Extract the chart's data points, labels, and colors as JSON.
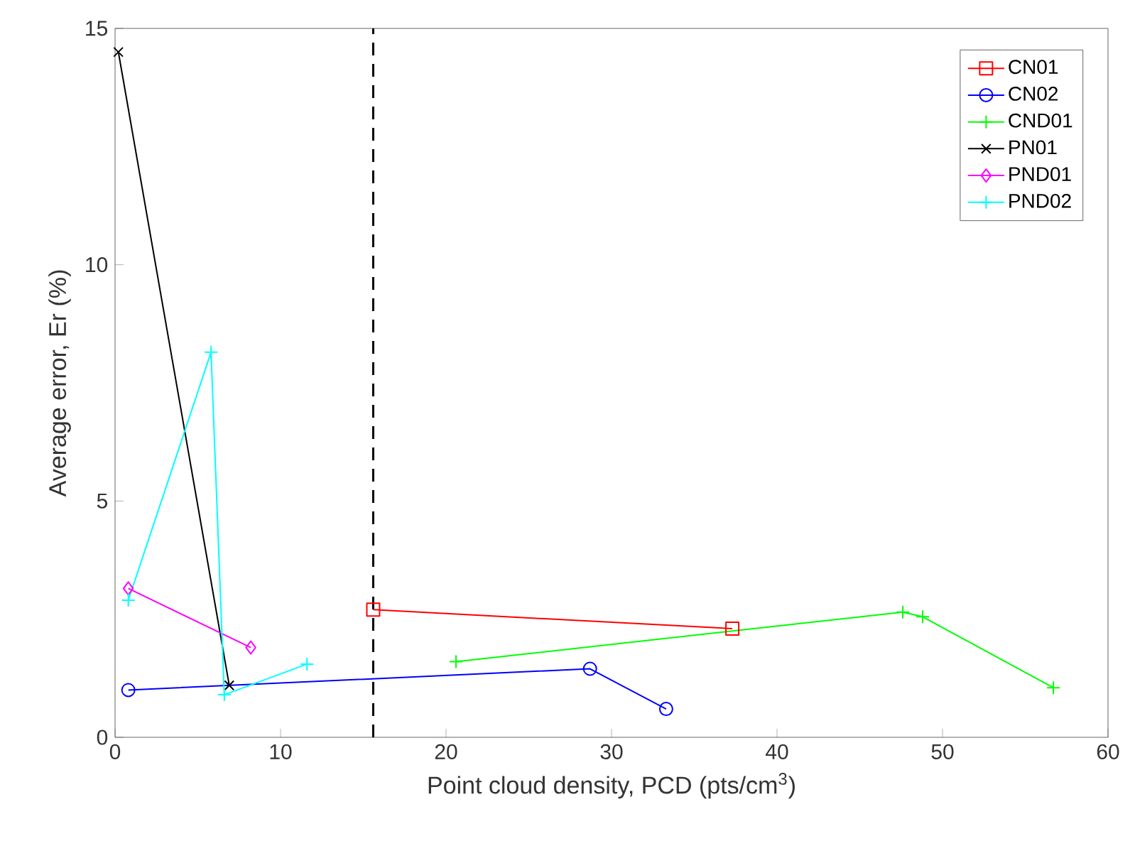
{
  "chart_data": {
    "type": "line",
    "xlabel": "Point cloud density, PCD (pts/cm$^{3}$)",
    "ylabel": "Average error, Er (%)",
    "xlim": [
      0,
      60
    ],
    "xticks": [
      0,
      10,
      20,
      30,
      40,
      50,
      60
    ],
    "ylim": [
      0,
      15
    ],
    "yticks": [
      0,
      5,
      10,
      15
    ],
    "grid": false,
    "legend": "top right",
    "series": [
      {
        "name": "CN01",
        "color": "#ff0000",
        "marker": "square",
        "x": [
          15.6,
          37.3
        ],
        "values": [
          2.7,
          2.3
        ]
      },
      {
        "name": "CN02",
        "color": "#0000ff",
        "marker": "circle",
        "x": [
          0.8,
          28.7,
          33.3
        ],
        "values": [
          1.0,
          1.45,
          0.6
        ]
      },
      {
        "name": "CND01",
        "color": "#00ff00",
        "marker": "plus",
        "x": [
          20.6,
          47.6,
          48.8,
          56.7
        ],
        "values": [
          1.6,
          2.65,
          2.55,
          1.05
        ]
      },
      {
        "name": "PN01",
        "color": "#000000",
        "marker": "cross",
        "x": [
          0.2,
          6.9
        ],
        "values": [
          14.5,
          1.1
        ]
      },
      {
        "name": "PND01",
        "color": "#ff00ff",
        "marker": "diamond",
        "x": [
          0.8,
          8.2
        ],
        "values": [
          3.15,
          1.9
        ]
      },
      {
        "name": "PND02",
        "color": "#00ffff",
        "marker": "plus",
        "x": [
          0.8,
          5.8,
          6.6,
          11.6
        ],
        "values": [
          2.9,
          8.15,
          0.9,
          1.55
        ]
      }
    ],
    "ref_lines": [
      {
        "axis": "x",
        "value": 15.6,
        "color": "#000000",
        "line_style": "dashed"
      }
    ]
  }
}
